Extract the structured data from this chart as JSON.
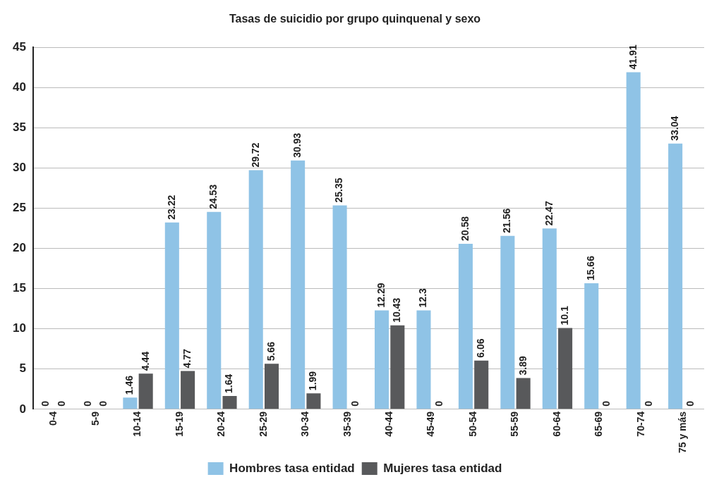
{
  "chart_data": {
    "type": "bar",
    "title": "Tasas de suicidio por grupo quinquenal y sexo",
    "categories": [
      "0-4",
      "5-9",
      "10-14",
      "15-19",
      "20-24",
      "25-29",
      "30-34",
      "35-39",
      "40-44",
      "45-49",
      "50-54",
      "55-59",
      "60-64",
      "65-69",
      "70-74",
      "75 y más"
    ],
    "series": [
      {
        "name": "Hombres tasa entidad",
        "color": "#8fc3e6",
        "values": [
          0,
          0,
          1.46,
          23.22,
          24.53,
          29.72,
          30.93,
          25.35,
          12.29,
          12.3,
          20.58,
          21.56,
          22.47,
          15.66,
          41.91,
          33.04
        ]
      },
      {
        "name": "Mujeres tasa entidad",
        "color": "#58595b",
        "values": [
          0,
          0,
          4.44,
          4.77,
          1.64,
          5.66,
          1.99,
          0,
          10.43,
          0,
          6.06,
          3.89,
          10.1,
          0,
          0,
          0
        ]
      }
    ],
    "ylim": [
      0,
      45
    ],
    "yticks": [
      0,
      5,
      10,
      15,
      20,
      25,
      30,
      35,
      40,
      45
    ],
    "grid": "y",
    "legend": "bottom",
    "data_labels": true
  }
}
